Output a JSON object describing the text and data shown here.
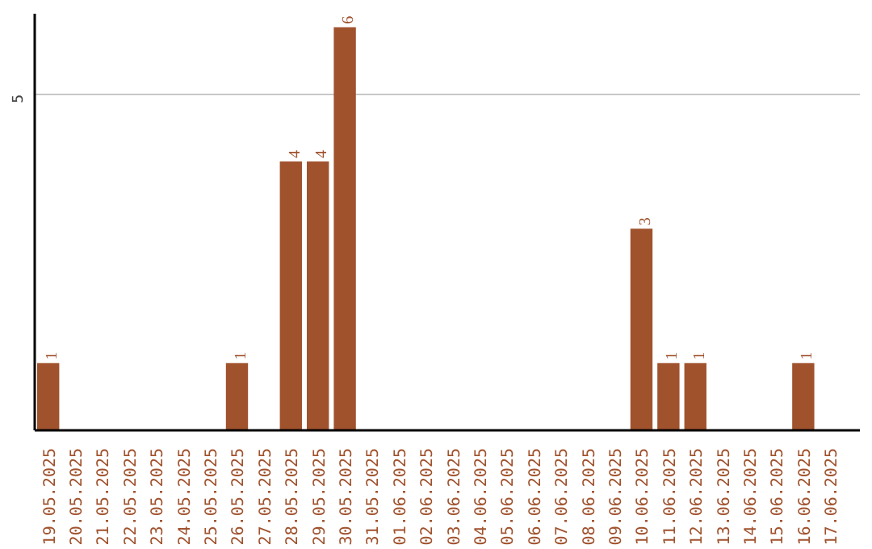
{
  "chart_data": {
    "type": "bar",
    "categories": [
      "19.05.2025",
      "20.05.2025",
      "21.05.2025",
      "22.05.2025",
      "23.05.2025",
      "24.05.2025",
      "25.05.2025",
      "26.05.2025",
      "27.05.2025",
      "28.05.2025",
      "29.05.2025",
      "30.05.2025",
      "31.05.2025",
      "01.06.2025",
      "02.06.2025",
      "03.06.2025",
      "04.06.2025",
      "05.06.2025",
      "06.06.2025",
      "07.06.2025",
      "08.06.2025",
      "09.06.2025",
      "10.06.2025",
      "11.06.2025",
      "12.06.2025",
      "13.06.2025",
      "14.06.2025",
      "15.06.2025",
      "16.06.2025",
      "17.06.2025"
    ],
    "values": [
      1,
      0,
      0,
      0,
      0,
      0,
      0,
      1,
      0,
      4,
      4,
      6,
      0,
      0,
      0,
      0,
      0,
      0,
      0,
      0,
      0,
      0,
      3,
      1,
      1,
      0,
      0,
      0,
      1,
      0
    ],
    "value_labels": [
      "1",
      null,
      null,
      null,
      null,
      null,
      null,
      "1",
      null,
      "4",
      "4",
      "6",
      null,
      null,
      null,
      null,
      null,
      null,
      null,
      null,
      null,
      null,
      "3",
      "1",
      "1",
      null,
      null,
      null,
      "1",
      null
    ],
    "color": "#a0522d",
    "ylim": [
      0,
      6.2
    ],
    "yticks": [
      5
    ],
    "grid": "y"
  }
}
